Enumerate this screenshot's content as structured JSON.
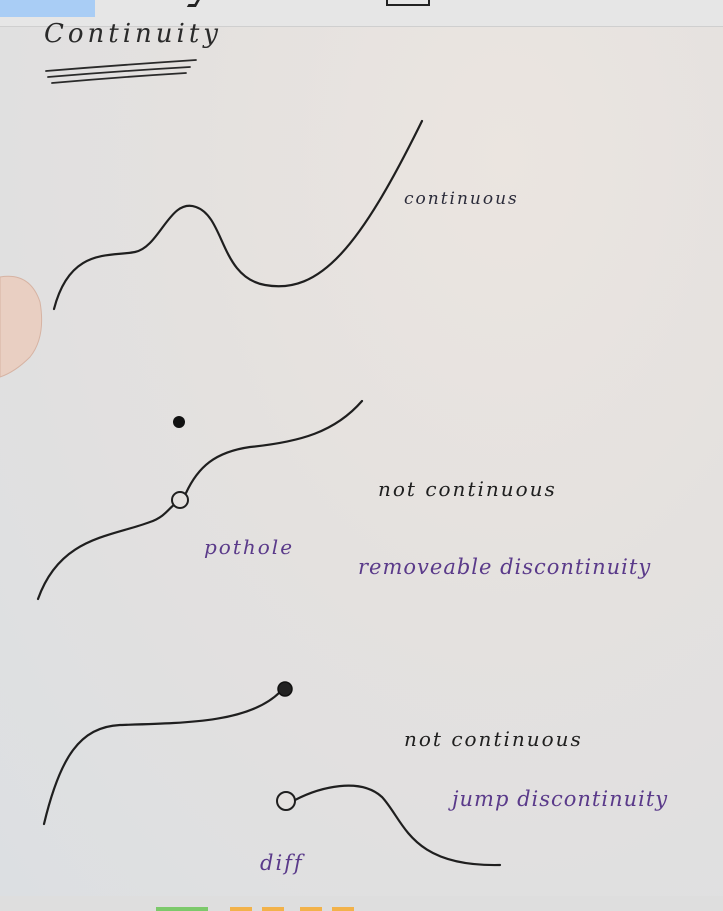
{
  "heading": "Continuity",
  "labels": {
    "continuous": "continuous",
    "not_continuous_1": "not continuous",
    "pothole": "pothole",
    "removable": "removeable discontinuity",
    "not_continuous_2": "not continuous",
    "jump": "jump discontinuity",
    "diff": "diff"
  },
  "colors": {
    "ink": "#1f1f1f",
    "purple_ink": "#5a3a8a",
    "paper": "#e4e1df",
    "tab_blue": "#a9cdf5",
    "bottom_green": "#7cc96b",
    "bottom_orange": "#f2b24a"
  }
}
